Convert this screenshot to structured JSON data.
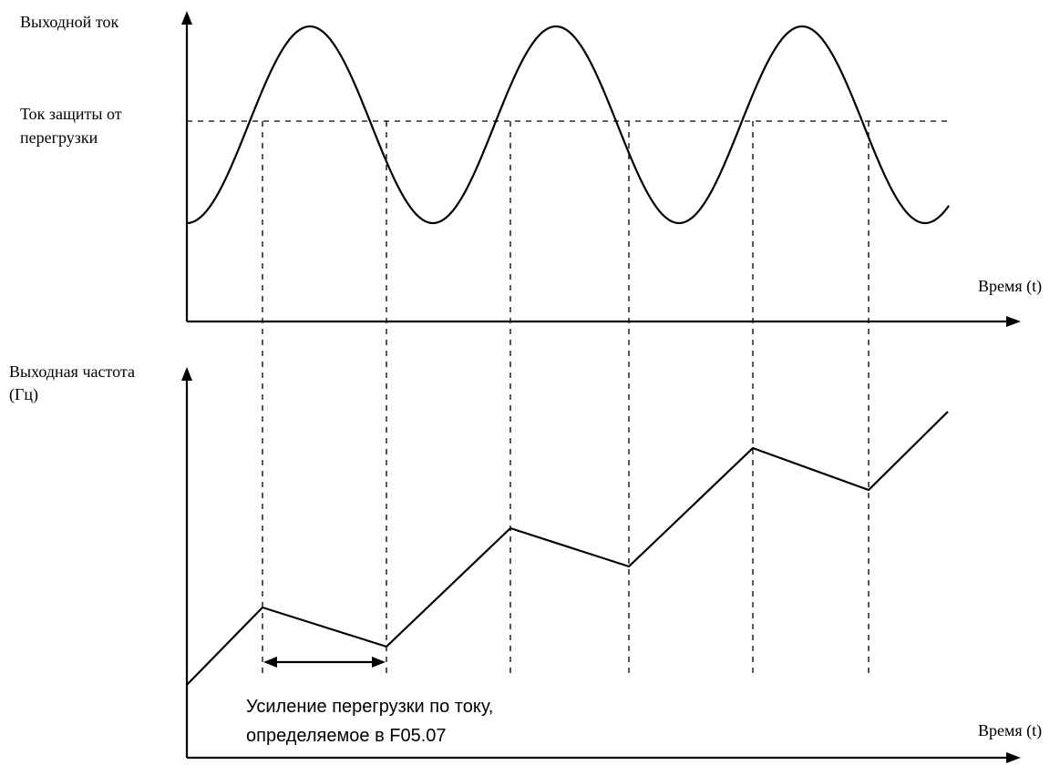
{
  "top_plot": {
    "ylabel": "Выходной ток",
    "threshold_label": [
      "Ток защиты от",
      "перегрузки"
    ],
    "xlabel": "Время (t)"
  },
  "bottom_plot": {
    "ylabel": [
      "Выходная частота",
      "(Гц)"
    ],
    "xlabel": "Время (t)",
    "annotation": [
      "Усиление перегрузки по току,",
      "определяемое в F05.07"
    ]
  },
  "colors": {
    "line": "#000000",
    "background": "#ffffff"
  }
}
